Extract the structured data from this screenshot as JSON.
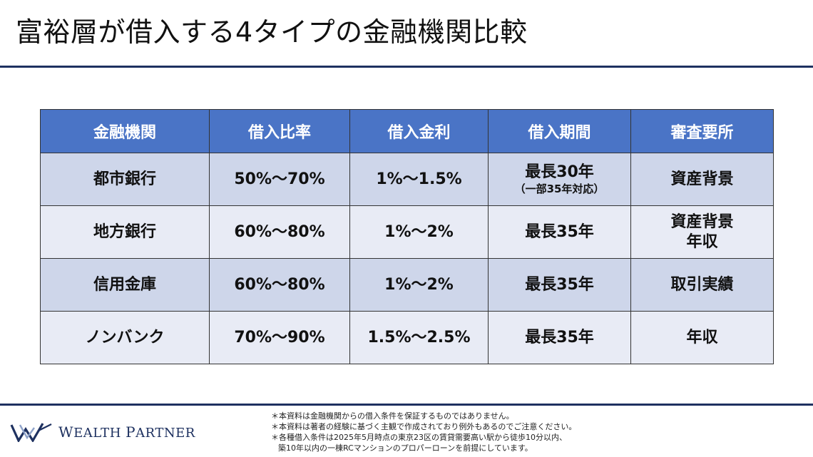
{
  "title": "富裕層が借入する4タイプの金融機関比較",
  "table": {
    "headers": [
      "金融機関",
      "借入比率",
      "借入金利",
      "借入期間",
      "審査要所"
    ],
    "rows": [
      {
        "institution": "都市銀行",
        "ratio": "50%〜70%",
        "rate": "1%〜1.5%",
        "term": "最長30年",
        "term_note": "（一部35年対応）",
        "screening": [
          "資産背景"
        ]
      },
      {
        "institution": "地方銀行",
        "ratio": "60%〜80%",
        "rate": "1%〜2%",
        "term": "最長35年",
        "term_note": "",
        "screening": [
          "資産背景",
          "年収"
        ]
      },
      {
        "institution": "信用金庫",
        "ratio": "60%〜80%",
        "rate": "1%〜2%",
        "term": "最長35年",
        "term_note": "",
        "screening": [
          "取引実績"
        ]
      },
      {
        "institution": "ノンバンク",
        "ratio": "70%〜90%",
        "rate": "1.5%〜2.5%",
        "term": "最長35年",
        "term_note": "",
        "screening": [
          "年収"
        ]
      }
    ]
  },
  "logo": {
    "text_w": "W",
    "text_ealth": "EALTH",
    "text_p": "P",
    "text_artner": "ARTNER"
  },
  "disclaimer": [
    "＊本資料は金融機関からの借入条件を保証するものではありません。",
    "＊本資料は著者の経験に基づく主観で作成されており例外もあるのでご注意ください。",
    "＊各種借入条件は2025年5月時点の東京23区の賃貸需要高い駅から徒歩10分以内、",
    "築10年以内の一棟RCマンションのプロパーローンを前提にしています。"
  ],
  "colors": {
    "header_bg": "#4a74c6",
    "row_dark": "#ced6ea",
    "row_light": "#e8ebf5",
    "navy": "#1e3160"
  }
}
